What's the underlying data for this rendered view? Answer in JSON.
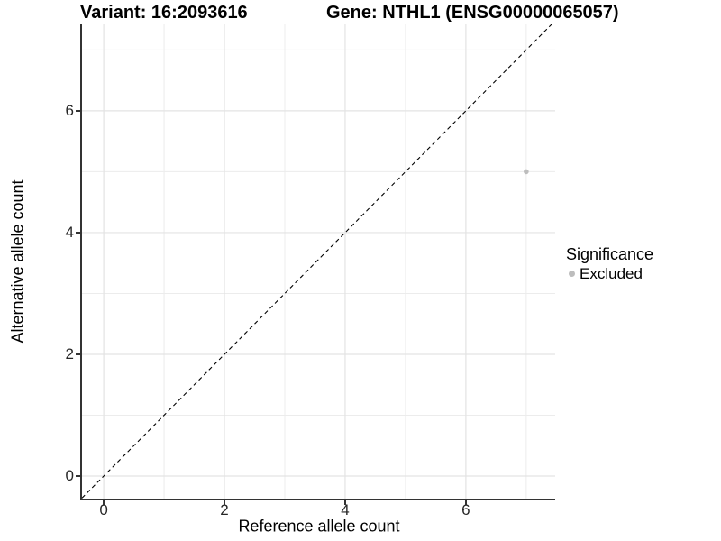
{
  "header": {
    "variant_title": "Variant: 16:2093616",
    "gene_title": "Gene: NTHL1 (ENSG00000065057)"
  },
  "chart_data": {
    "type": "scatter",
    "titles": [
      "Variant: 16:2093616",
      "Gene: NTHL1 (ENSG00000065057)"
    ],
    "xlabel": "Reference allele count",
    "ylabel": "Alternative allele count",
    "xlim": [
      -0.36,
      7.48
    ],
    "ylim": [
      -0.37,
      7.42
    ],
    "x_ticks": [
      0,
      2,
      4,
      6
    ],
    "y_ticks": [
      0,
      2,
      4,
      6
    ],
    "x_minor_gridlines": [
      1,
      3,
      5,
      7
    ],
    "y_minor_gridlines": [
      1,
      3,
      5,
      7
    ],
    "grid": true,
    "reference_line": {
      "slope": 1,
      "intercept": 0,
      "style": "dashed",
      "color": "#000000"
    },
    "series": [
      {
        "name": "Excluded",
        "color": "#bdbdbd",
        "points": [
          {
            "x": 7,
            "y": 5
          }
        ]
      }
    ],
    "legend": {
      "title": "Significance",
      "position": "right",
      "entries": [
        "Excluded"
      ]
    }
  },
  "colors": {
    "axis_line": "#333333",
    "tick_text": "#262626",
    "grid_major": "#e3e3e3",
    "grid_minor": "#ececec",
    "excluded_point": "#bdbdbd",
    "reference_line": "#000000"
  }
}
